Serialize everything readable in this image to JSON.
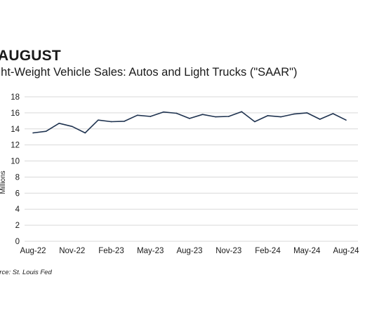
{
  "heading": "AUGUST",
  "title": "ght-Weight Vehicle Sales: Autos and Light Trucks (\"SAAR\")",
  "source": "urce: St. Louis Fed",
  "chart_data": {
    "type": "line",
    "title": "ght-Weight Vehicle Sales: Autos and Light Trucks (\"SAAR\")",
    "xlabel": "",
    "ylabel": "Millions",
    "ylim": [
      0,
      18
    ],
    "yticks": [
      0,
      2,
      4,
      6,
      8,
      10,
      12,
      14,
      16,
      18
    ],
    "grid": "horizontal",
    "legend": "none",
    "x": [
      "Aug-22",
      "Sep-22",
      "Oct-22",
      "Nov-22",
      "Dec-22",
      "Jan-23",
      "Feb-23",
      "Mar-23",
      "Apr-23",
      "May-23",
      "Jun-23",
      "Jul-23",
      "Aug-23",
      "Sep-23",
      "Oct-23",
      "Nov-23",
      "Dec-23",
      "Jan-24",
      "Feb-24",
      "Mar-24",
      "Apr-24",
      "May-24",
      "Jun-24",
      "Jul-24",
      "Aug-24"
    ],
    "xtick_labels": [
      "Aug-22",
      "Nov-22",
      "Feb-23",
      "May-23",
      "Aug-23",
      "Nov-23",
      "Feb-24",
      "May-24",
      "Aug-24"
    ],
    "series": [
      {
        "color": "#1f3350",
        "values": [
          13.5,
          13.7,
          14.7,
          14.3,
          13.5,
          15.1,
          14.9,
          14.95,
          15.7,
          15.55,
          16.1,
          15.95,
          15.3,
          15.8,
          15.5,
          15.55,
          16.15,
          14.9,
          15.65,
          15.5,
          15.85,
          16.0,
          15.2,
          15.9,
          15.1
        ]
      }
    ]
  }
}
